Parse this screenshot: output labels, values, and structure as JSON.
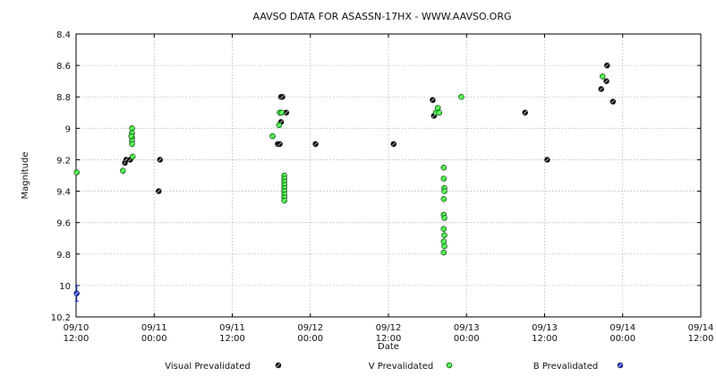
{
  "chart_data": {
    "type": "scatter",
    "title": "AAVSO DATA FOR ASASSN-17HX - WWW.AAVSO.ORG",
    "xlabel": "Date",
    "ylabel": "Magnitude",
    "y_inverted": true,
    "ylim": [
      10.2,
      8.4
    ],
    "y_ticks": [
      "8.4",
      "8.6",
      "8.8",
      "9",
      "9.2",
      "9.4",
      "9.6",
      "9.8",
      "10",
      "10.2"
    ],
    "xlim": [
      0,
      96
    ],
    "x_unit": "hours since 09/10 12:00",
    "x_ticks": [
      {
        "line1": "09/10",
        "line2": "12:00",
        "x": 0
      },
      {
        "line1": "09/11",
        "line2": "00:00",
        "x": 12
      },
      {
        "line1": "09/11",
        "line2": "12:00",
        "x": 24
      },
      {
        "line1": "09/12",
        "line2": "00:00",
        "x": 36
      },
      {
        "line1": "09/12",
        "line2": "12:00",
        "x": 48
      },
      {
        "line1": "09/13",
        "line2": "00:00",
        "x": 60
      },
      {
        "line1": "09/13",
        "line2": "12:00",
        "x": 72
      },
      {
        "line1": "09/14",
        "line2": "00:00",
        "x": 84
      },
      {
        "line1": "09/14",
        "line2": "12:00",
        "x": 96
      }
    ],
    "grid": true,
    "legend_position": "bottom",
    "series": [
      {
        "name": "Visual Prevalidated",
        "color": "#000000",
        "points": [
          [
            7.5,
            9.22
          ],
          [
            7.7,
            9.2
          ],
          [
            8.3,
            9.2
          ],
          [
            12.9,
            9.2
          ],
          [
            12.7,
            9.4
          ],
          [
            31.0,
            9.1
          ],
          [
            31.3,
            9.1
          ],
          [
            31.5,
            8.8
          ],
          [
            31.7,
            8.8
          ],
          [
            31.5,
            8.96
          ],
          [
            32.3,
            8.9
          ],
          [
            36.8,
            9.1
          ],
          [
            48.8,
            9.1
          ],
          [
            54.8,
            8.82
          ],
          [
            55.0,
            8.92
          ],
          [
            69.0,
            8.9
          ],
          [
            72.4,
            9.2
          ],
          [
            80.7,
            8.75
          ],
          [
            81.5,
            8.7
          ],
          [
            81.6,
            8.6
          ],
          [
            82.5,
            8.83
          ]
        ]
      },
      {
        "name": "V Prevalidated",
        "color": "#22ee22",
        "points": [
          [
            0.1,
            9.28
          ],
          [
            7.2,
            9.27
          ],
          [
            8.6,
            9.0
          ],
          [
            8.6,
            9.03
          ],
          [
            8.6,
            9.06
          ],
          [
            8.6,
            9.08
          ],
          [
            8.6,
            9.1
          ],
          [
            8.5,
            9.05
          ],
          [
            8.7,
            9.18
          ],
          [
            30.2,
            9.05
          ],
          [
            31.2,
            8.98
          ],
          [
            31.3,
            8.9
          ],
          [
            31.6,
            8.9
          ],
          [
            32.0,
            9.3
          ],
          [
            32.0,
            9.32
          ],
          [
            32.0,
            9.34
          ],
          [
            32.0,
            9.36
          ],
          [
            32.0,
            9.38
          ],
          [
            32.0,
            9.4
          ],
          [
            32.0,
            9.42
          ],
          [
            32.0,
            9.44
          ],
          [
            32.0,
            9.46
          ],
          [
            55.3,
            8.9
          ],
          [
            55.6,
            8.87
          ],
          [
            55.8,
            8.9
          ],
          [
            59.2,
            8.8
          ],
          [
            56.5,
            9.25
          ],
          [
            56.5,
            9.32
          ],
          [
            56.6,
            9.38
          ],
          [
            56.6,
            9.4
          ],
          [
            56.5,
            9.45
          ],
          [
            56.5,
            9.55
          ],
          [
            56.6,
            9.57
          ],
          [
            56.5,
            9.64
          ],
          [
            56.6,
            9.68
          ],
          [
            56.5,
            9.72
          ],
          [
            56.6,
            9.75
          ],
          [
            56.5,
            9.79
          ],
          [
            80.9,
            8.67
          ]
        ]
      },
      {
        "name": "B Prevalidated",
        "color": "#1a2fd6",
        "points": [
          [
            0.1,
            10.05
          ]
        ],
        "error_bars": [
          [
            10.0,
            10.1
          ]
        ]
      }
    ]
  }
}
